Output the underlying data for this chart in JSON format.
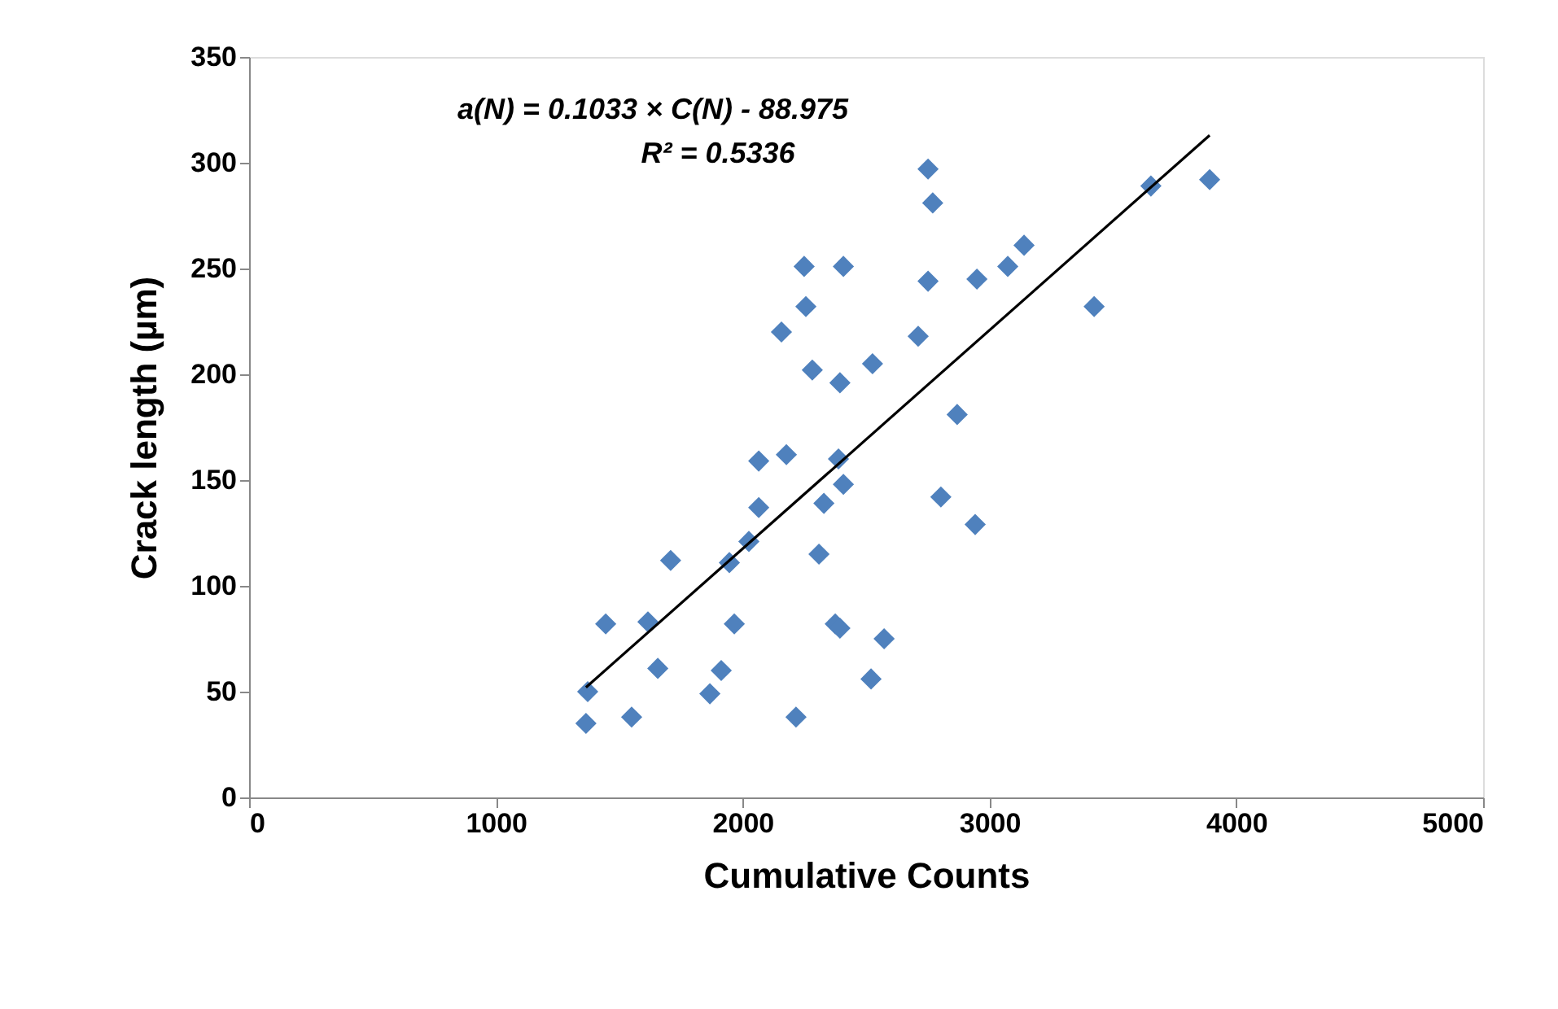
{
  "chart_data": {
    "type": "scatter",
    "xlabel": "Cumulative Counts",
    "ylabel": "Crack length (µm)",
    "xlim": [
      0,
      5000
    ],
    "xticks": [
      0,
      1000,
      2000,
      3000,
      4000,
      5000
    ],
    "ylim": [
      0,
      350
    ],
    "yticks": [
      0,
      50,
      100,
      150,
      200,
      250,
      300,
      350
    ],
    "grid": false,
    "annotations": [
      "a(N) = 0.1033 × C(N) - 88.975",
      "R² = 0.5336"
    ],
    "series": [
      {
        "type": "scatter",
        "marker": "diamond",
        "color": "#4f81bd",
        "x": [
          2751,
          2770,
          2249,
          2408,
          2751,
          2949,
          3074,
          2256,
          2157,
          2711,
          2282,
          2394,
          2526,
          2869,
          2065,
          2177,
          2388,
          2408,
          2065,
          2329,
          2803,
          2942,
          1708,
          1946,
          2025,
          2309,
          1445,
          1616,
          1966,
          2375,
          2394,
          2573,
          1656,
          1913,
          1867,
          2520,
          1372,
          1365,
          1550,
          2216,
          3140,
          3654,
          3892,
          3424
        ],
        "values": [
          297,
          281,
          251,
          251,
          244,
          245,
          251,
          232,
          220,
          218,
          202,
          196,
          205,
          181,
          159,
          162,
          160,
          148,
          137,
          139,
          142,
          129,
          112,
          111,
          121,
          115,
          82,
          83,
          82,
          82,
          80,
          75,
          61,
          60,
          49,
          56,
          50,
          35,
          38,
          38,
          261,
          289,
          292,
          232
        ]
      },
      {
        "type": "line",
        "line_style": "solid",
        "color": "#000000",
        "x": [
          1365,
          3892
        ],
        "values": [
          52,
          313
        ]
      }
    ]
  }
}
